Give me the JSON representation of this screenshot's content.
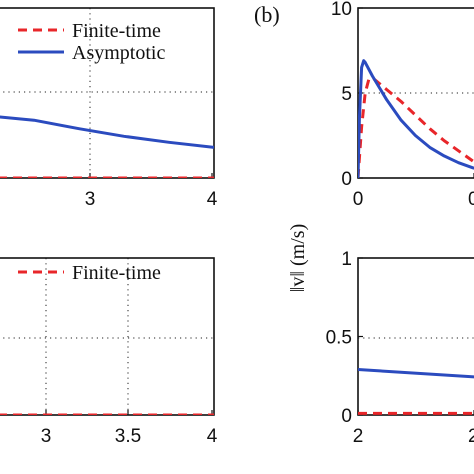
{
  "panel_label_b": "(b)",
  "ylabel_b": "‖v‖ (m/s)",
  "chart_data": [
    {
      "id": "top-left",
      "type": "line",
      "x_ticks": [
        "3",
        "4"
      ],
      "xlim": [
        1.6,
        4
      ],
      "ylim": [
        0,
        1
      ],
      "grid": true,
      "legend": {
        "placement": "top-right",
        "entries": [
          "Finite-time",
          "Asymptotic"
        ]
      },
      "series": [
        {
          "name": "Finite-time",
          "color": "#e8262a",
          "dash": true,
          "x": [
            1.6,
            4
          ],
          "y": [
            0,
            0
          ]
        },
        {
          "name": "Asymptotic",
          "color": "#2b4bbf",
          "dash": false,
          "x": [
            1.6,
            2.0,
            2.5,
            3.0,
            3.5,
            4.0
          ],
          "y": [
            0.36,
            0.34,
            0.29,
            0.245,
            0.21,
            0.18
          ]
        }
      ]
    },
    {
      "id": "bottom-left",
      "type": "line",
      "x_ticks": [
        "3",
        "3.5",
        "4"
      ],
      "xlim": [
        2.55,
        4
      ],
      "ylim": [
        0,
        1
      ],
      "grid": true,
      "legend": {
        "placement": "top-right",
        "entries": [
          "Finite-time"
        ]
      },
      "series": [
        {
          "name": "Finite-time",
          "color": "#e8262a",
          "dash": true,
          "x": [
            2.55,
            4
          ],
          "y": [
            0,
            0
          ]
        }
      ]
    },
    {
      "id": "top-right",
      "type": "line",
      "x_ticks": [
        "0",
        "0"
      ],
      "y_ticks": [
        "0",
        "5",
        "10"
      ],
      "xlim": [
        0,
        1.7
      ],
      "ylim": [
        0,
        10
      ],
      "grid": true,
      "series": [
        {
          "color": "#e8262a",
          "dash": true,
          "x": [
            0,
            0.05,
            0.1,
            0.15,
            0.2,
            0.4,
            0.6,
            0.8,
            1.0,
            1.2,
            1.4,
            1.6,
            1.7
          ],
          "y": [
            0,
            3.0,
            5.0,
            5.8,
            5.9,
            5.2,
            4.5,
            3.7,
            2.9,
            2.2,
            1.6,
            1.0,
            0.8
          ]
        },
        {
          "color": "#2b4bbf",
          "dash": false,
          "x": [
            0,
            0.02,
            0.05,
            0.08,
            0.1,
            0.2,
            0.4,
            0.6,
            0.8,
            1.0,
            1.2,
            1.4,
            1.6,
            1.7
          ],
          "y": [
            0,
            3.5,
            6.5,
            6.9,
            6.8,
            6.0,
            4.6,
            3.4,
            2.5,
            1.8,
            1.3,
            0.9,
            0.6,
            0.5
          ]
        }
      ]
    },
    {
      "id": "bottom-right",
      "type": "line",
      "x_ticks": [
        "2",
        "2"
      ],
      "y_ticks": [
        "0",
        "0.5",
        "1"
      ],
      "xlim": [
        2,
        2.35
      ],
      "ylim": [
        0,
        1
      ],
      "grid": true,
      "series": [
        {
          "color": "#e8262a",
          "dash": true,
          "x": [
            2,
            2.35
          ],
          "y": [
            0.01,
            0.01
          ]
        },
        {
          "color": "#2b4bbf",
          "dash": false,
          "x": [
            2,
            2.35
          ],
          "y": [
            0.29,
            0.24
          ]
        }
      ]
    }
  ]
}
